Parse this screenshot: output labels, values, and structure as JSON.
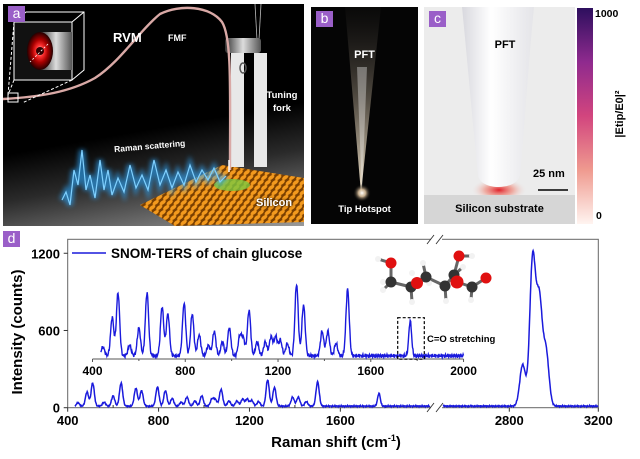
{
  "panels": {
    "a": {
      "label": "a",
      "rvm": "RVM",
      "fmf": "FMF",
      "tuning_fork": [
        "Tuning",
        "fork"
      ],
      "raman": "Raman scattering",
      "silicon": "Silicon"
    },
    "b": {
      "label": "b",
      "pft": "PFT",
      "hotspot": "Tip Hotspot"
    },
    "c": {
      "label": "c",
      "pft": "PFT",
      "scale_bar": "25 nm",
      "substrate": "Silicon substrate",
      "colorbar": {
        "max": "1000",
        "min": "0",
        "label": "|Etip/E0|²",
        "label_parts": [
          "|E",
          "tip",
          "/E",
          "0",
          "|",
          "2"
        ],
        "colors": [
          "#fff4f0",
          "#ef9a8f",
          "#d2457e",
          "#8f2a8e",
          "#2d0f5e"
        ]
      }
    },
    "d": {
      "label": "d"
    }
  },
  "chart_data": {
    "type": "line",
    "xlabel": "Raman shift (cm-1)",
    "xlabel_parts": [
      "Raman shift (cm",
      "-1",
      ")"
    ],
    "ylabel": "Intensity (counts)",
    "x_segments": [
      [
        400,
        2000
      ],
      [
        2500,
        3200
      ]
    ],
    "xticks": [
      "400",
      "800",
      "1200",
      "1600",
      "2800",
      "3200"
    ],
    "xtick_values": [
      400,
      800,
      1200,
      1600,
      2800,
      3200
    ],
    "ylim": [
      0,
      1200
    ],
    "yticks": [
      "0",
      "600",
      "1200"
    ],
    "ytick_values": [
      0,
      600,
      1200
    ],
    "axis_break": true,
    "legend_position": "top-left",
    "series": [
      {
        "name": "SNOM-TERS of chain glucose",
        "color": "#1a1adc",
        "baseline": 12,
        "peaks": [
          {
            "shift": 445,
            "intensity": 25
          },
          {
            "shift": 485,
            "intensity": 110
          },
          {
            "shift": 510,
            "intensity": 180
          },
          {
            "shift": 560,
            "intensity": 30
          },
          {
            "shift": 600,
            "intensity": 80
          },
          {
            "shift": 635,
            "intensity": 180
          },
          {
            "shift": 700,
            "intensity": 140
          },
          {
            "shift": 725,
            "intensity": 120
          },
          {
            "shift": 795,
            "intensity": 150
          },
          {
            "shift": 830,
            "intensity": 120
          },
          {
            "shift": 860,
            "intensity": 60
          },
          {
            "shift": 900,
            "intensity": 30
          },
          {
            "shift": 925,
            "intensity": 70
          },
          {
            "shift": 960,
            "intensity": 40
          },
          {
            "shift": 990,
            "intensity": 80
          },
          {
            "shift": 1035,
            "intensity": 55
          },
          {
            "shift": 1050,
            "intensity": 50
          },
          {
            "shift": 1075,
            "intensity": 130
          },
          {
            "shift": 1110,
            "intensity": 40
          },
          {
            "shift": 1145,
            "intensity": 40
          },
          {
            "shift": 1170,
            "intensity": 55
          },
          {
            "shift": 1190,
            "intensity": 55
          },
          {
            "shift": 1210,
            "intensity": 45
          },
          {
            "shift": 1240,
            "intensity": 35
          },
          {
            "shift": 1280,
            "intensity": 205
          },
          {
            "shift": 1310,
            "intensity": 145
          },
          {
            "shift": 1390,
            "intensity": 70
          },
          {
            "shift": 1415,
            "intensity": 70
          },
          {
            "shift": 1450,
            "intensity": 35
          },
          {
            "shift": 1500,
            "intensity": 190
          },
          {
            "shift": 1770,
            "intensity": 100
          },
          {
            "shift": 2860,
            "intensity": 320
          },
          {
            "shift": 2905,
            "intensity": 1140
          },
          {
            "shift": 2935,
            "intensity": 800
          },
          {
            "shift": 2965,
            "intensity": 420
          }
        ]
      }
    ],
    "inset": {
      "xlim": [
        400,
        2000
      ],
      "xticks": [
        "400",
        "800",
        "1200",
        "1600",
        "2000"
      ],
      "xtick_values": [
        400,
        800,
        1200,
        1600,
        2000
      ],
      "annotation": "C=O stretching",
      "annotation_range": [
        1730,
        1820
      ]
    }
  }
}
